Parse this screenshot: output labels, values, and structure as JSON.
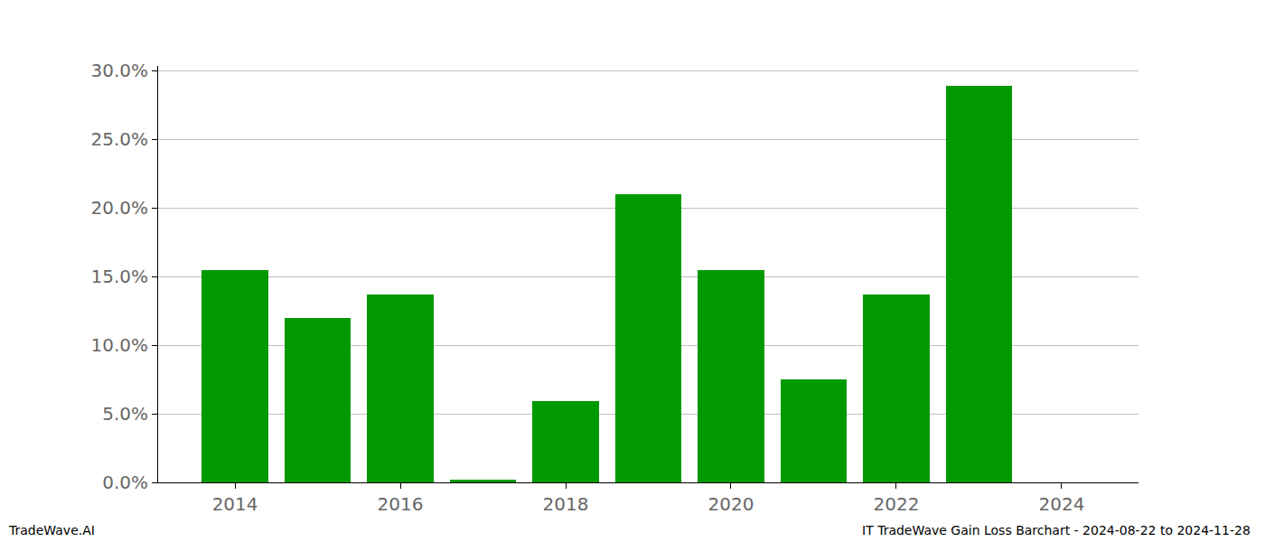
{
  "chart_data": {
    "type": "bar",
    "x": [
      2014,
      2015,
      2016,
      2017,
      2018,
      2019,
      2020,
      2021,
      2022,
      2023
    ],
    "values": [
      15.5,
      12.0,
      13.7,
      0.2,
      5.9,
      21.0,
      15.5,
      7.5,
      13.7,
      28.9
    ],
    "color": "#009900",
    "xlim": [
      2013.07,
      2024.93
    ],
    "xticks": [
      2014,
      2016,
      2018,
      2020,
      2022,
      2024
    ],
    "ylim": [
      0,
      30.35
    ],
    "yticks": [
      {
        "value": 0,
        "label": "0.0%"
      },
      {
        "value": 5,
        "label": "5.0%"
      },
      {
        "value": 10,
        "label": "10.0%"
      },
      {
        "value": 15,
        "label": "15.0%"
      },
      {
        "value": 20,
        "label": "20.0%"
      },
      {
        "value": 25,
        "label": "25.0%"
      },
      {
        "value": 30,
        "label": "30.0%"
      }
    ],
    "grid": "y",
    "annotations": [
      "TradeWave.AI",
      "IT TradeWave Gain Loss Barchart - 2024-08-22 to 2024-11-28"
    ]
  }
}
